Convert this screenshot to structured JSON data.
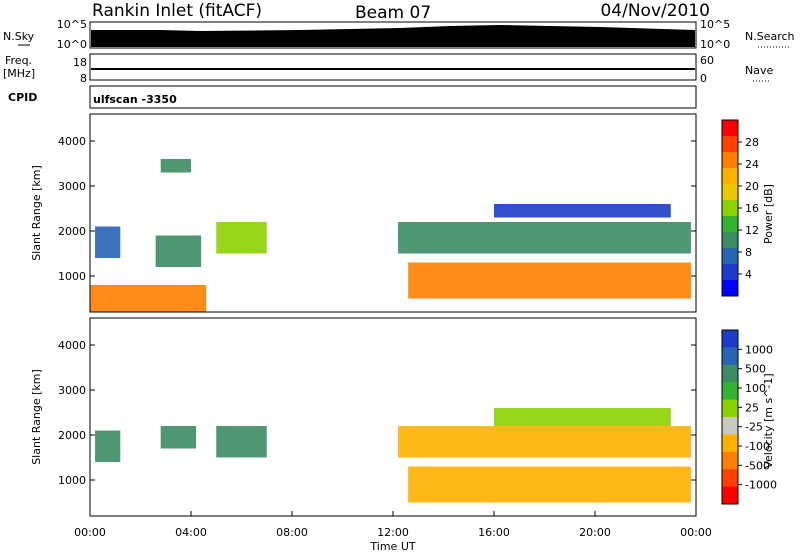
{
  "header": {
    "station": "Rankin Inlet (fitACF)",
    "beam": "Beam 07",
    "date": "04/Nov/2010"
  },
  "side_labels": {
    "nsky": "N.Sky",
    "nsearch": "N.Search",
    "freq": "Freq.",
    "freq_unit": "[MHz]",
    "nave": "Nave",
    "cpid": "CPID",
    "cpid_value": "ulfscan -3350"
  },
  "noise_axis": {
    "ticks_left": [
      "10^5",
      "10^0"
    ],
    "ticks_right": [
      "10^5",
      "10^0"
    ]
  },
  "freq_axis": {
    "ticks_left": [
      "18",
      "8"
    ],
    "ticks_right": [
      "60",
      "0"
    ]
  },
  "chart_data": [
    {
      "type": "heatmap",
      "name": "power",
      "xlabel": "",
      "ylabel": "Slant Range [km]",
      "xlim": [
        0,
        24
      ],
      "ylim": [
        200,
        4600
      ],
      "yticks": [
        1000,
        2000,
        3000,
        4000
      ],
      "colorbar": {
        "label": "Power [dB]",
        "ticks": [
          "28",
          "24",
          "20",
          "16",
          "12",
          "8",
          "4"
        ],
        "colors": [
          "#ff0000",
          "#ff4000",
          "#ff7f00",
          "#ffb000",
          "#e8c800",
          "#8cd200",
          "#32b432",
          "#3c8c64",
          "#2864b4",
          "#1e3cc8",
          "#0000ff"
        ]
      },
      "regions": [
        {
          "t0": 0.0,
          "t1": 4.6,
          "r0": 200,
          "r1": 800,
          "v": 24
        },
        {
          "t0": 0.2,
          "t1": 1.2,
          "r0": 1400,
          "r1": 2100,
          "v": 10
        },
        {
          "t0": 2.6,
          "t1": 4.4,
          "r0": 1200,
          "r1": 1900,
          "v": 12
        },
        {
          "t0": 2.8,
          "t1": 4.0,
          "r0": 3300,
          "r1": 3600,
          "v": 12
        },
        {
          "t0": 5.0,
          "t1": 7.0,
          "r0": 1500,
          "r1": 2200,
          "v": 16
        },
        {
          "t0": 12.2,
          "t1": 23.8,
          "r0": 1500,
          "r1": 2200,
          "v": 12
        },
        {
          "t0": 12.6,
          "t1": 23.8,
          "r0": 500,
          "r1": 1300,
          "v": 26
        },
        {
          "t0": 16.0,
          "t1": 23.0,
          "r0": 2300,
          "r1": 2600,
          "v": 6
        }
      ]
    },
    {
      "type": "heatmap",
      "name": "velocity",
      "xlabel": "Time UT",
      "ylabel": "Slant Range [km]",
      "xlim": [
        0,
        24
      ],
      "ylim": [
        200,
        4600
      ],
      "yticks": [
        1000,
        2000,
        3000,
        4000
      ],
      "xticks": [
        "00:00",
        "04:00",
        "08:00",
        "12:00",
        "16:00",
        "20:00",
        "00:00"
      ],
      "colorbar": {
        "label": "Velocity [m s^-1]",
        "ticks": [
          "1000",
          "500",
          "100",
          "25",
          "-25",
          "-100",
          "-500",
          "-1000"
        ],
        "colors": [
          "#1e3cc8",
          "#2864b4",
          "#3c8c64",
          "#32b432",
          "#8cd200",
          "#c8c8c0",
          "#ffb000",
          "#ff7f00",
          "#ff4000",
          "#ff0000"
        ]
      },
      "regions": [
        {
          "t0": 0.2,
          "t1": 1.2,
          "r0": 1400,
          "r1": 2100,
          "v": 120
        },
        {
          "t0": 2.8,
          "t1": 4.2,
          "r0": 1700,
          "r1": 2200,
          "v": 150
        },
        {
          "t0": 5.0,
          "t1": 7.0,
          "r0": 1500,
          "r1": 2200,
          "v": 150
        },
        {
          "t0": 12.2,
          "t1": 23.8,
          "r0": 1500,
          "r1": 2200,
          "v": -150
        },
        {
          "t0": 12.6,
          "t1": 23.8,
          "r0": 500,
          "r1": 1300,
          "v": -200
        },
        {
          "t0": 16.0,
          "t1": 23.0,
          "r0": 2200,
          "r1": 2600,
          "v": 0
        }
      ]
    }
  ]
}
